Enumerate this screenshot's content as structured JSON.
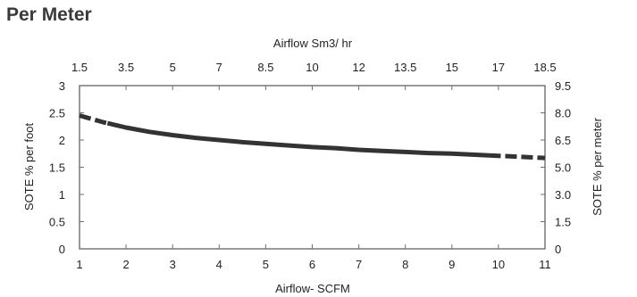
{
  "page": {
    "title": "Per Meter"
  },
  "chart_data": {
    "type": "line",
    "title": "",
    "xlabel": "Airflow- SCFM",
    "ylabel": "SOTE % per foot",
    "x2label": "Airflow Sm3/ hr",
    "y2label": "SOTE % per meter",
    "xlim": [
      1,
      11
    ],
    "ylim": [
      0,
      3
    ],
    "x_ticks": [
      "1",
      "2",
      "3",
      "4",
      "5",
      "6",
      "7",
      "8",
      "9",
      "10",
      "11"
    ],
    "y_ticks": [
      "0",
      "0.5",
      "1",
      "1.5",
      "2",
      "2.5",
      "3"
    ],
    "x2_ticks": [
      "1.5",
      "3.5",
      "5",
      "7",
      "8.5",
      "10",
      "12",
      "13.5",
      "15",
      "17",
      "18.5"
    ],
    "y2_ticks": [
      "0",
      "1.5",
      "3.0",
      "5.0",
      "6.5",
      "8.0",
      "9.5"
    ],
    "grid": false,
    "series": [
      {
        "x": [
          1.0,
          1.5,
          2.0,
          2.5,
          3.0,
          3.5,
          4.0,
          4.5,
          5.0,
          5.5,
          6.0,
          6.5,
          7.0,
          7.5,
          8.0,
          8.5,
          9.0,
          9.5,
          10.0,
          10.5,
          11.0
        ],
        "y": [
          2.45,
          2.33,
          2.23,
          2.15,
          2.09,
          2.04,
          2.0,
          1.96,
          1.93,
          1.9,
          1.87,
          1.85,
          1.82,
          1.8,
          1.78,
          1.76,
          1.75,
          1.73,
          1.71,
          1.69,
          1.67
        ],
        "solid_range": [
          1.6,
          9.8
        ],
        "color": "#333333"
      }
    ]
  }
}
